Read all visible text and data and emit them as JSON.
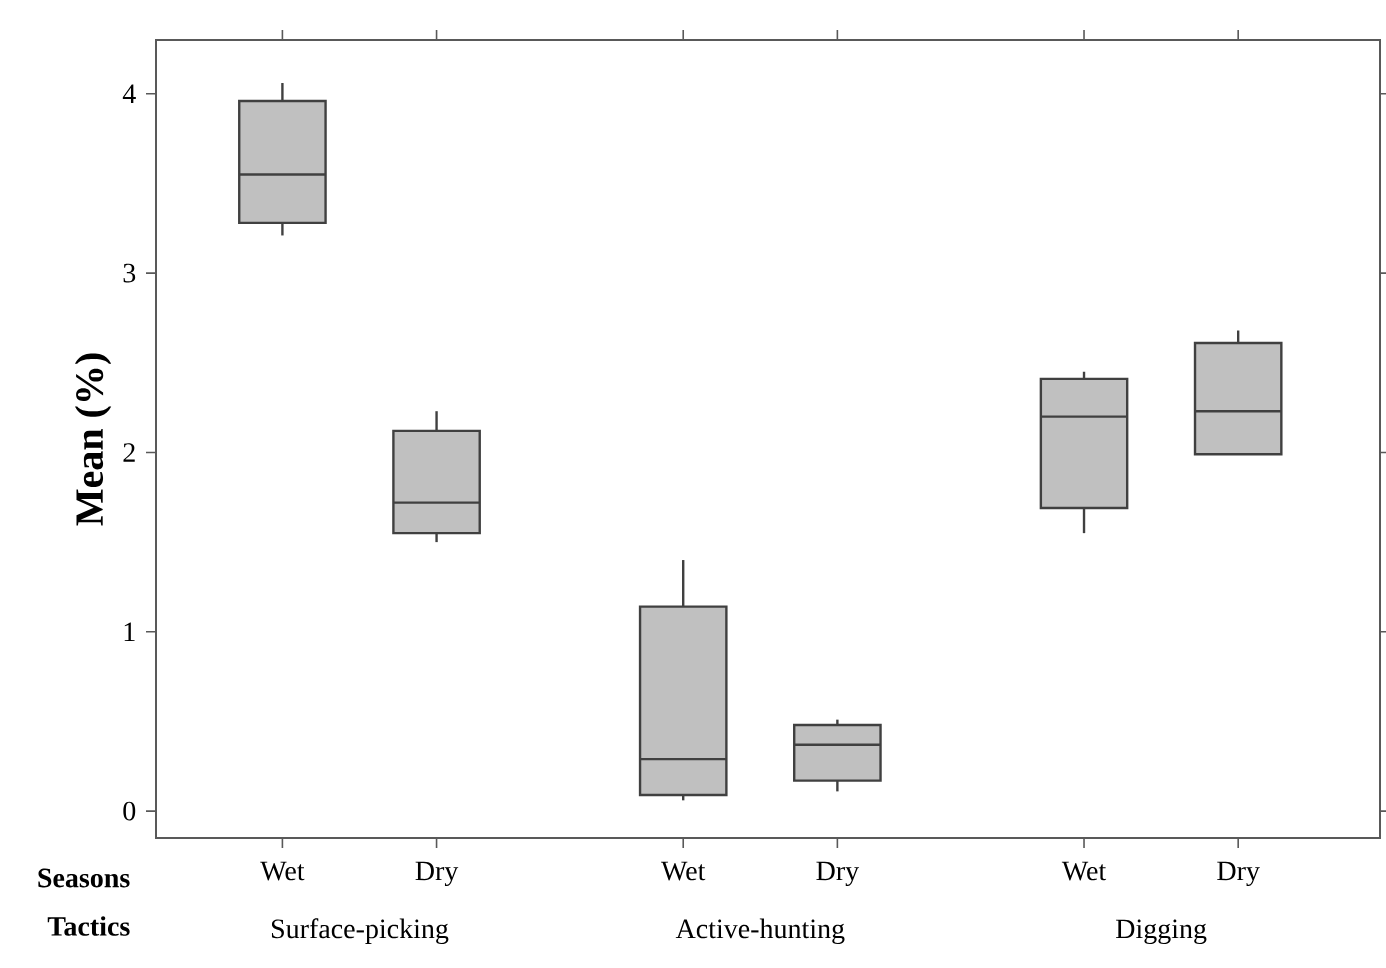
{
  "chart_data": {
    "type": "box",
    "ylabel": "Mean (%)",
    "categories": [
      "Wet",
      "Dry",
      "Wet",
      "Dry",
      "Wet",
      "Dry"
    ],
    "annotations": [
      "Seasons",
      "Tactics",
      "Surface-picking",
      "Active-hunting",
      "Digging"
    ],
    "color": "#c0c0c0",
    "boxes": [
      {
        "low": 3.21,
        "q1": 3.28,
        "median": 3.55,
        "q3": 3.96,
        "high": 4.06
      },
      {
        "low": 1.5,
        "q1": 1.55,
        "median": 1.72,
        "q3": 2.12,
        "high": 2.23
      },
      {
        "low": 0.06,
        "q1": 0.09,
        "median": 0.29,
        "q3": 1.14,
        "high": 1.4
      },
      {
        "low": 0.11,
        "q1": 0.17,
        "median": 0.37,
        "q3": 0.48,
        "high": 0.51
      },
      {
        "low": 1.55,
        "q1": 1.69,
        "median": 2.2,
        "q3": 2.41,
        "high": 2.45
      },
      {
        "low": 1.99,
        "q1": 1.99,
        "median": 2.23,
        "q3": 2.61,
        "high": 2.68
      }
    ],
    "ylim": [
      -0.15,
      4.3
    ],
    "yticks": [
      0,
      1,
      2,
      3,
      4
    ]
  }
}
